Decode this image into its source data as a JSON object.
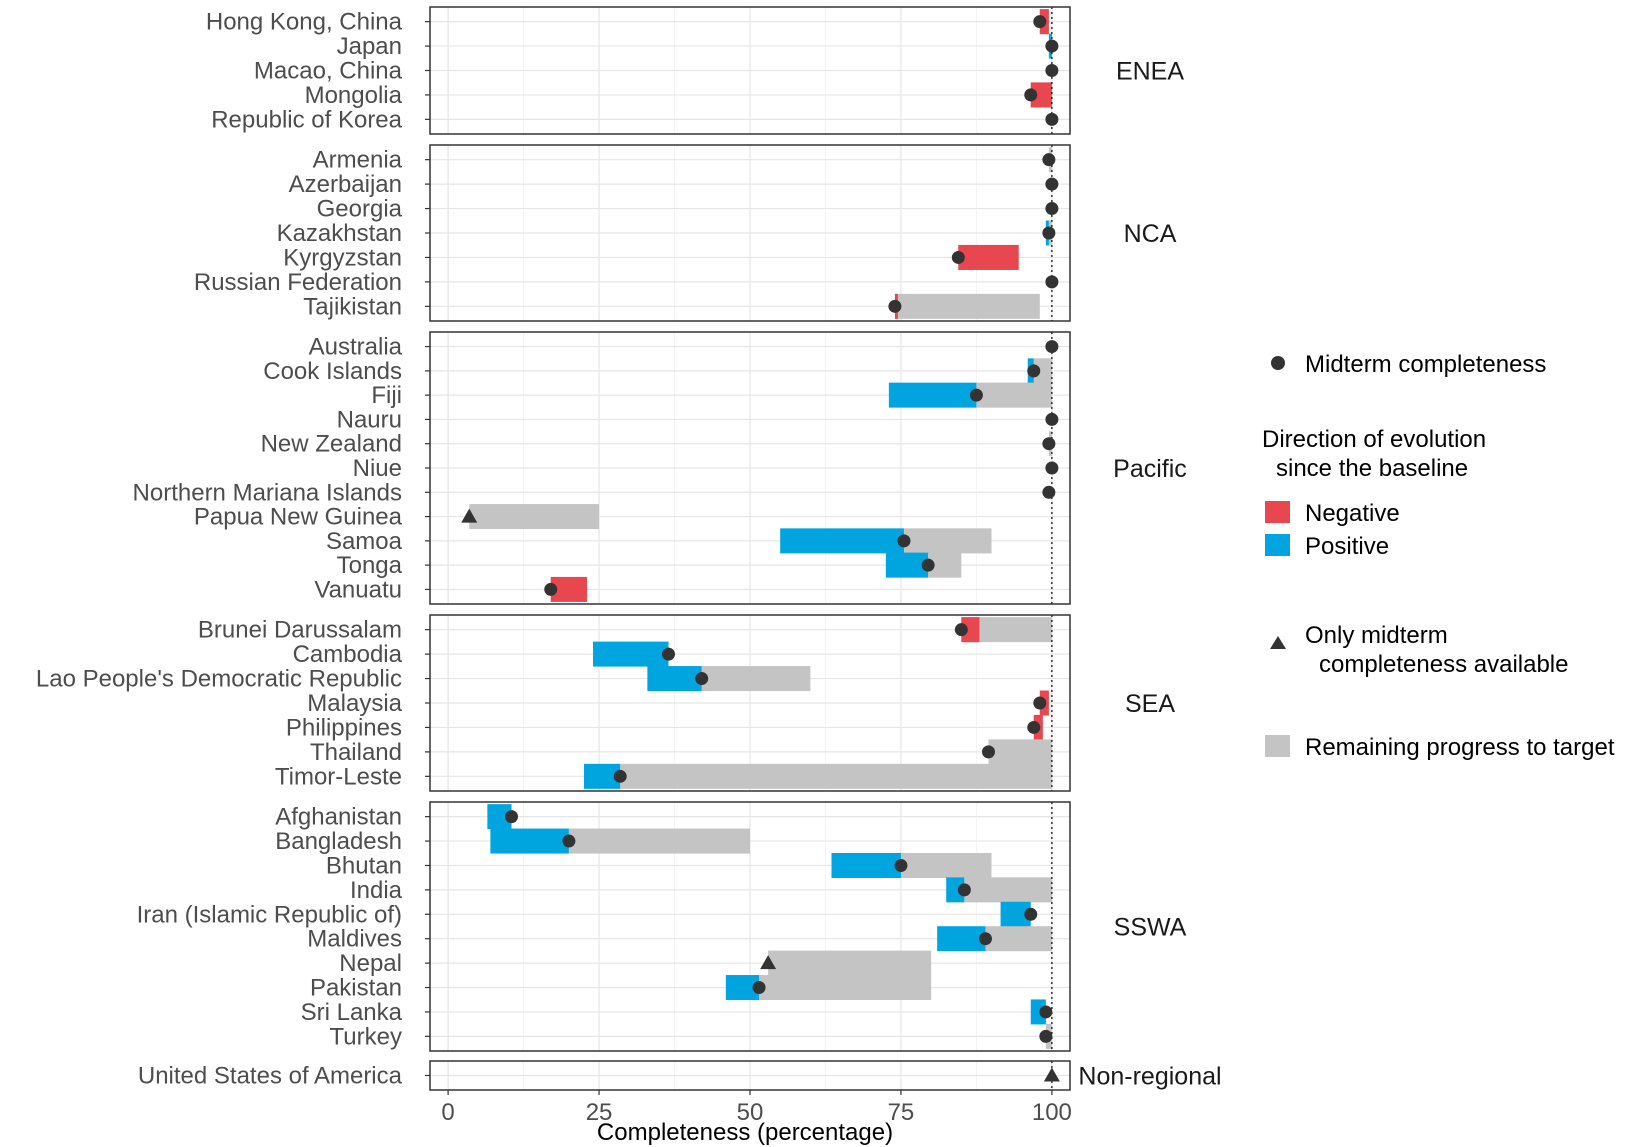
{
  "chart_data": {
    "type": "range-bar-dot",
    "xlabel": "Completeness (percentage)",
    "xlim": [
      -3,
      103
    ],
    "x_ticks": [
      "0",
      "25",
      "50",
      "75",
      "100"
    ],
    "x_tick_values": [
      0,
      25,
      50,
      75,
      100
    ],
    "target": 100,
    "colors": {
      "negative": "#e8474f",
      "positive": "#00a5e0",
      "remaining": "#c4c4c4",
      "marker": "#333333"
    },
    "legend": {
      "midterm": "Midterm completeness",
      "direction_title_line1": "Direction of evolution",
      "direction_title_line2": "since the baseline",
      "negative": "Negative",
      "positive": "Positive",
      "only_midterm_line1": "Only midterm",
      "only_midterm_line2": "completeness available",
      "remaining": "Remaining progress to target"
    },
    "panels": [
      {
        "name": "ENEA",
        "rows": [
          {
            "country": "Hong Kong, China",
            "baseline": 99.5,
            "midterm": 98,
            "target": 99.5,
            "marker": "dot"
          },
          {
            "country": "Japan",
            "baseline": 99.5,
            "midterm": 100,
            "target": 100,
            "marker": "dot"
          },
          {
            "country": "Macao, China",
            "baseline": 100,
            "midterm": 100,
            "target": 100,
            "marker": "dot"
          },
          {
            "country": "Mongolia",
            "baseline": 100,
            "midterm": 96.5,
            "target": 100,
            "marker": "dot"
          },
          {
            "country": "Republic of Korea",
            "baseline": 100,
            "midterm": 100,
            "target": 100,
            "marker": "dot"
          }
        ]
      },
      {
        "name": "NCA",
        "rows": [
          {
            "country": "Armenia",
            "baseline": 99.5,
            "midterm": 99.5,
            "target": 100,
            "marker": "dot"
          },
          {
            "country": "Azerbaijan",
            "baseline": 100,
            "midterm": 100,
            "target": 100,
            "marker": "dot"
          },
          {
            "country": "Georgia",
            "baseline": 100,
            "midterm": 100,
            "target": 100,
            "marker": "dot"
          },
          {
            "country": "Kazakhstan",
            "baseline": 99,
            "midterm": 99.5,
            "target": 100,
            "marker": "dot"
          },
          {
            "country": "Kyrgyzstan",
            "baseline": 94.5,
            "midterm": 84.5,
            "target": 94.5,
            "marker": "dot"
          },
          {
            "country": "Russian Federation",
            "baseline": 100,
            "midterm": 100,
            "target": 100,
            "marker": "dot"
          },
          {
            "country": "Tajikistan",
            "baseline": 74.5,
            "midterm": 74,
            "target": 98,
            "marker": "dot"
          }
        ]
      },
      {
        "name": "Pacific",
        "rows": [
          {
            "country": "Australia",
            "baseline": 100,
            "midterm": 100,
            "target": 100,
            "marker": "dot"
          },
          {
            "country": "Cook Islands",
            "baseline": 96,
            "midterm": 97,
            "target": 100,
            "marker": "dot"
          },
          {
            "country": "Fiji",
            "baseline": 73,
            "midterm": 87.5,
            "target": 100,
            "marker": "dot"
          },
          {
            "country": "Nauru",
            "baseline": 100,
            "midterm": 100,
            "target": 100,
            "marker": "dot"
          },
          {
            "country": "New Zealand",
            "baseline": 99.5,
            "midterm": 99.5,
            "target": 100,
            "marker": "dot"
          },
          {
            "country": "Niue",
            "baseline": 100,
            "midterm": 100,
            "target": 100,
            "marker": "dot"
          },
          {
            "country": "Northern Mariana Islands",
            "baseline": 99.5,
            "midterm": 99.5,
            "target": 99.5,
            "marker": "dot"
          },
          {
            "country": "Papua New Guinea",
            "baseline": 3.5,
            "midterm": 3.5,
            "target": 25,
            "marker": "triangle"
          },
          {
            "country": "Samoa",
            "baseline": 55,
            "midterm": 75.5,
            "target": 90,
            "marker": "dot"
          },
          {
            "country": "Tonga",
            "baseline": 72.5,
            "midterm": 79.5,
            "target": 85,
            "marker": "dot"
          },
          {
            "country": "Vanuatu",
            "baseline": 23,
            "midterm": 17,
            "target": 23,
            "marker": "dot"
          }
        ]
      },
      {
        "name": "SEA",
        "rows": [
          {
            "country": "Brunei Darussalam",
            "baseline": 88,
            "midterm": 85,
            "target": 100,
            "marker": "dot"
          },
          {
            "country": "Cambodia",
            "baseline": 24,
            "midterm": 36.5,
            "target": 36.5,
            "marker": "dot"
          },
          {
            "country": "Lao People's Democratic Republic",
            "baseline": 33,
            "midterm": 42,
            "target": 60,
            "marker": "dot"
          },
          {
            "country": "Malaysia",
            "baseline": 99.5,
            "midterm": 98,
            "target": 99.5,
            "marker": "dot"
          },
          {
            "country": "Philippines",
            "baseline": 98.5,
            "midterm": 97,
            "target": 98.5,
            "marker": "dot"
          },
          {
            "country": "Thailand",
            "baseline": 89.5,
            "midterm": 89.5,
            "target": 100,
            "marker": "dot"
          },
          {
            "country": "Timor-Leste",
            "baseline": 22.5,
            "midterm": 28.5,
            "target": 100,
            "marker": "dot"
          }
        ]
      },
      {
        "name": "SSWA",
        "rows": [
          {
            "country": "Afghanistan",
            "baseline": 6.5,
            "midterm": 10.5,
            "target": 10.5,
            "marker": "dot"
          },
          {
            "country": "Bangladesh",
            "baseline": 7,
            "midterm": 20,
            "target": 50,
            "marker": "dot"
          },
          {
            "country": "Bhutan",
            "baseline": 63.5,
            "midterm": 75,
            "target": 90,
            "marker": "dot"
          },
          {
            "country": "India",
            "baseline": 82.5,
            "midterm": 85.5,
            "target": 100,
            "marker": "dot"
          },
          {
            "country": "Iran (Islamic Republic of)",
            "baseline": 91.5,
            "midterm": 96.5,
            "target": 96.5,
            "marker": "dot"
          },
          {
            "country": "Maldives",
            "baseline": 81,
            "midterm": 89,
            "target": 100,
            "marker": "dot"
          },
          {
            "country": "Nepal",
            "baseline": 53,
            "midterm": 53,
            "target": 80,
            "marker": "triangle"
          },
          {
            "country": "Pakistan",
            "baseline": 46,
            "midterm": 51.5,
            "target": 80,
            "marker": "dot"
          },
          {
            "country": "Sri Lanka",
            "baseline": 96.5,
            "midterm": 99,
            "target": 99,
            "marker": "dot"
          },
          {
            "country": "Turkey",
            "baseline": 99,
            "midterm": 99,
            "target": 100,
            "marker": "dot"
          }
        ]
      },
      {
        "name": "Non-regional",
        "rows": [
          {
            "country": "United States of America",
            "baseline": 100,
            "midterm": 100,
            "target": 100,
            "marker": "triangle"
          }
        ]
      }
    ]
  }
}
